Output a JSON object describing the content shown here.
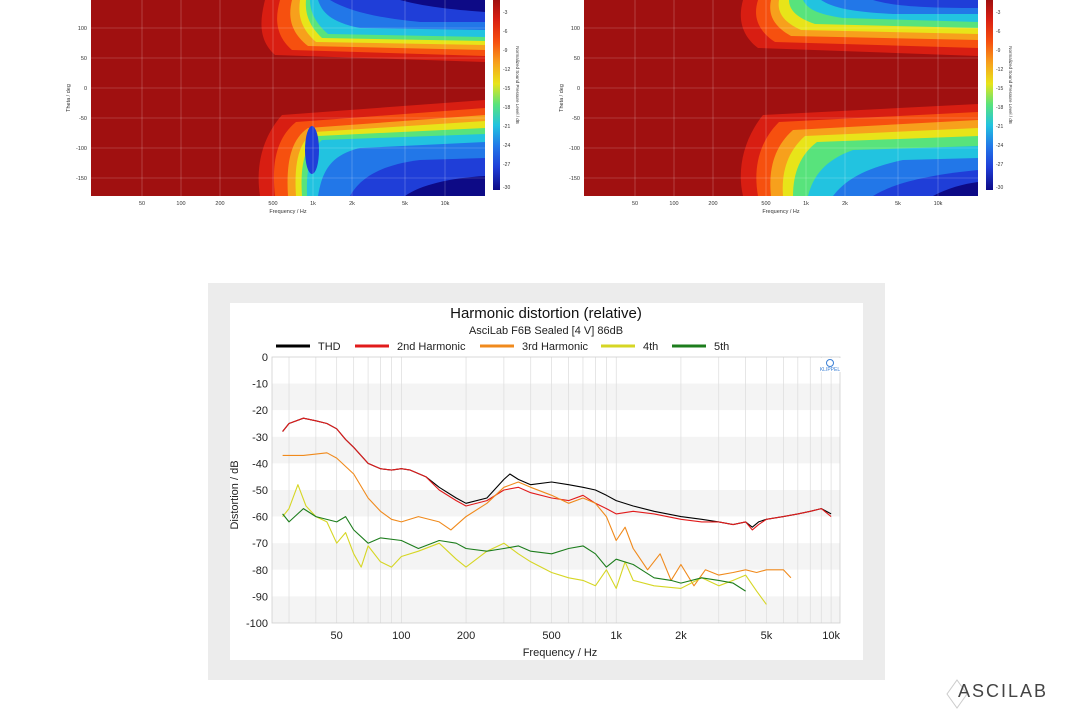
{
  "polar_maps": {
    "y_label": "Theta / deg",
    "x_label": "Frequency / Hz",
    "colorbar_label": "Normalized Sound Pressure Level / dB",
    "y_ticks": [
      "100",
      "50",
      "0",
      "-50",
      "-100",
      "-150"
    ],
    "x_ticks": [
      "50",
      "100",
      "200",
      "500",
      "1k",
      "2k",
      "5k",
      "10k"
    ],
    "colorbar_ticks": [
      "-3",
      "-6",
      "-9",
      "-12",
      "-15",
      "-18",
      "-21",
      "-24",
      "-27",
      "-30"
    ],
    "colors": [
      "#a01010",
      "#d81e12",
      "#f6500f",
      "#f7a01c",
      "#e8e419",
      "#58e37c",
      "#22c3e0",
      "#2277e8",
      "#1f3ed8",
      "#0d0a86"
    ]
  },
  "chart_data": {
    "type": "line",
    "title": "Harmonic distortion (relative)",
    "subtitle": "AsciLab F6B Sealed [4 V] 86dB",
    "xlabel": "Frequency / Hz",
    "ylabel": "Distortion / dB",
    "x_scale": "log",
    "xlim": [
      25,
      11000
    ],
    "ylim": [
      -100,
      0
    ],
    "x_ticks": [
      {
        "value": 50,
        "label": "50"
      },
      {
        "value": 100,
        "label": "100"
      },
      {
        "value": 200,
        "label": "200"
      },
      {
        "value": 500,
        "label": "500"
      },
      {
        "value": 1000,
        "label": "1k"
      },
      {
        "value": 2000,
        "label": "2k"
      },
      {
        "value": 5000,
        "label": "5k"
      },
      {
        "value": 10000,
        "label": "10k"
      }
    ],
    "y_ticks": [
      0,
      -10,
      -20,
      -30,
      -40,
      -50,
      -60,
      -70,
      -80,
      -90,
      -100
    ],
    "grid": true,
    "legend_position": "top",
    "series": [
      {
        "name": "THD",
        "color": "#000000",
        "points": [
          [
            28,
            -28
          ],
          [
            30,
            -25
          ],
          [
            35,
            -23
          ],
          [
            40,
            -24
          ],
          [
            45,
            -25
          ],
          [
            50,
            -27
          ],
          [
            55,
            -31
          ],
          [
            60,
            -34
          ],
          [
            70,
            -40
          ],
          [
            80,
            -42
          ],
          [
            90,
            -42.5
          ],
          [
            100,
            -42
          ],
          [
            110,
            -42.5
          ],
          [
            130,
            -45
          ],
          [
            150,
            -49
          ],
          [
            180,
            -53
          ],
          [
            200,
            -55
          ],
          [
            250,
            -53
          ],
          [
            300,
            -46
          ],
          [
            320,
            -44
          ],
          [
            350,
            -46
          ],
          [
            400,
            -48
          ],
          [
            500,
            -47
          ],
          [
            600,
            -48
          ],
          [
            700,
            -49
          ],
          [
            800,
            -50
          ],
          [
            900,
            -52
          ],
          [
            1000,
            -54
          ],
          [
            1200,
            -56
          ],
          [
            1500,
            -58
          ],
          [
            2000,
            -60
          ],
          [
            2500,
            -61
          ],
          [
            3000,
            -62
          ],
          [
            3500,
            -63
          ],
          [
            4000,
            -62
          ],
          [
            4300,
            -64
          ],
          [
            4600,
            -62
          ],
          [
            5000,
            -61
          ],
          [
            6000,
            -60
          ],
          [
            7000,
            -59
          ],
          [
            8000,
            -58
          ],
          [
            9000,
            -57
          ],
          [
            10000,
            -59
          ]
        ]
      },
      {
        "name": "2nd Harmonic",
        "color": "#e11b1b",
        "points": [
          [
            28,
            -28
          ],
          [
            30,
            -25
          ],
          [
            35,
            -23
          ],
          [
            40,
            -24
          ],
          [
            45,
            -25
          ],
          [
            50,
            -27
          ],
          [
            55,
            -31
          ],
          [
            60,
            -34
          ],
          [
            70,
            -40
          ],
          [
            80,
            -42
          ],
          [
            90,
            -42.5
          ],
          [
            100,
            -42
          ],
          [
            110,
            -42.5
          ],
          [
            130,
            -45
          ],
          [
            150,
            -50
          ],
          [
            180,
            -54
          ],
          [
            200,
            -56
          ],
          [
            250,
            -54
          ],
          [
            300,
            -50
          ],
          [
            350,
            -49
          ],
          [
            400,
            -51
          ],
          [
            500,
            -53
          ],
          [
            600,
            -54
          ],
          [
            700,
            -52
          ],
          [
            800,
            -55
          ],
          [
            900,
            -57
          ],
          [
            1000,
            -59
          ],
          [
            1200,
            -58
          ],
          [
            1500,
            -59
          ],
          [
            2000,
            -61
          ],
          [
            2500,
            -62
          ],
          [
            3000,
            -62
          ],
          [
            3500,
            -63
          ],
          [
            4000,
            -62
          ],
          [
            4300,
            -65
          ],
          [
            4600,
            -63
          ],
          [
            5000,
            -61
          ],
          [
            6000,
            -60
          ],
          [
            7000,
            -59
          ],
          [
            8000,
            -58
          ],
          [
            9000,
            -57
          ],
          [
            10000,
            -60
          ]
        ]
      },
      {
        "name": "3rd Harmonic",
        "color": "#f08a1c",
        "points": [
          [
            28,
            -37
          ],
          [
            35,
            -37
          ],
          [
            40,
            -36.5
          ],
          [
            45,
            -36
          ],
          [
            50,
            -38
          ],
          [
            60,
            -44
          ],
          [
            70,
            -53
          ],
          [
            80,
            -58
          ],
          [
            90,
            -61
          ],
          [
            100,
            -62
          ],
          [
            120,
            -60
          ],
          [
            150,
            -62
          ],
          [
            170,
            -65
          ],
          [
            200,
            -60
          ],
          [
            250,
            -55
          ],
          [
            300,
            -49
          ],
          [
            350,
            -47
          ],
          [
            400,
            -49
          ],
          [
            500,
            -52
          ],
          [
            600,
            -55
          ],
          [
            700,
            -53
          ],
          [
            800,
            -55
          ],
          [
            900,
            -60
          ],
          [
            1000,
            -69
          ],
          [
            1100,
            -64
          ],
          [
            1200,
            -72
          ],
          [
            1400,
            -80
          ],
          [
            1600,
            -74
          ],
          [
            1800,
            -84
          ],
          [
            2000,
            -78
          ],
          [
            2300,
            -86
          ],
          [
            2600,
            -80
          ],
          [
            3000,
            -82
          ],
          [
            3500,
            -81
          ],
          [
            4000,
            -80
          ],
          [
            4500,
            -81
          ],
          [
            5000,
            -80
          ],
          [
            6000,
            -80
          ],
          [
            6500,
            -83
          ]
        ]
      },
      {
        "name": "4th",
        "color": "#d6d624",
        "points": [
          [
            28,
            -60
          ],
          [
            30,
            -57
          ],
          [
            33,
            -48
          ],
          [
            36,
            -56
          ],
          [
            40,
            -60
          ],
          [
            45,
            -62
          ],
          [
            50,
            -70
          ],
          [
            55,
            -66
          ],
          [
            60,
            -74
          ],
          [
            65,
            -79
          ],
          [
            70,
            -71
          ],
          [
            80,
            -77
          ],
          [
            90,
            -79
          ],
          [
            100,
            -75
          ],
          [
            120,
            -73
          ],
          [
            150,
            -70
          ],
          [
            180,
            -76
          ],
          [
            200,
            -79
          ],
          [
            250,
            -73
          ],
          [
            300,
            -70
          ],
          [
            350,
            -74
          ],
          [
            400,
            -77
          ],
          [
            500,
            -81
          ],
          [
            600,
            -83
          ],
          [
            700,
            -84
          ],
          [
            800,
            -86
          ],
          [
            900,
            -80
          ],
          [
            1000,
            -87
          ],
          [
            1100,
            -77
          ],
          [
            1200,
            -84
          ],
          [
            1500,
            -86
          ],
          [
            2000,
            -87
          ],
          [
            2500,
            -83
          ],
          [
            3000,
            -86
          ],
          [
            3500,
            -84
          ],
          [
            4000,
            -82
          ],
          [
            4500,
            -88
          ],
          [
            5000,
            -93
          ]
        ]
      },
      {
        "name": "5th",
        "color": "#1c7d1c",
        "points": [
          [
            28,
            -59
          ],
          [
            30,
            -62
          ],
          [
            35,
            -57
          ],
          [
            40,
            -60
          ],
          [
            50,
            -62
          ],
          [
            55,
            -60
          ],
          [
            60,
            -65
          ],
          [
            70,
            -70
          ],
          [
            80,
            -68
          ],
          [
            100,
            -69
          ],
          [
            120,
            -72
          ],
          [
            150,
            -69
          ],
          [
            180,
            -70
          ],
          [
            200,
            -72
          ],
          [
            250,
            -73
          ],
          [
            300,
            -72
          ],
          [
            350,
            -71
          ],
          [
            400,
            -73
          ],
          [
            500,
            -74
          ],
          [
            600,
            -72
          ],
          [
            700,
            -71
          ],
          [
            800,
            -74
          ],
          [
            900,
            -79
          ],
          [
            1000,
            -76
          ],
          [
            1200,
            -78
          ],
          [
            1500,
            -83
          ],
          [
            1800,
            -84
          ],
          [
            2000,
            -85
          ],
          [
            2500,
            -83
          ],
          [
            3000,
            -84
          ],
          [
            3500,
            -85
          ],
          [
            4000,
            -88
          ]
        ]
      }
    ]
  },
  "badge": {
    "text": "KLIPPEL",
    "color": "#3a7fd5"
  },
  "branding": {
    "logo_text": "ASCILAB"
  }
}
